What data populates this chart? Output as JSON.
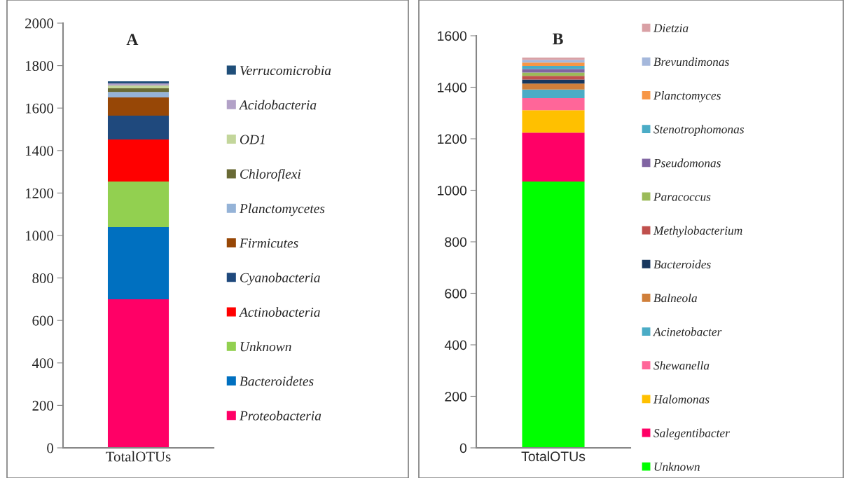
{
  "chart_data": [
    {
      "type": "bar",
      "title": "A",
      "stacked": true,
      "categories": [
        "TotalOTUs"
      ],
      "ylim": [
        0,
        2000
      ],
      "yticks": [
        0,
        200,
        400,
        600,
        800,
        1000,
        1200,
        1400,
        1600,
        1800,
        2000
      ],
      "grid": false,
      "legend": "right",
      "series": [
        {
          "name": "Proteobacteria",
          "color": "#ff0066",
          "values": [
            700
          ]
        },
        {
          "name": "Bacteroidetes",
          "color": "#0070c0",
          "values": [
            340
          ]
        },
        {
          "name": "Unknown",
          "color": "#92d050",
          "values": [
            214
          ]
        },
        {
          "name": "Actinobacteria",
          "color": "#ff0000",
          "values": [
            198
          ]
        },
        {
          "name": "Cyanobacteria",
          "color": "#1f497d",
          "values": [
            112
          ]
        },
        {
          "name": "Firmicutes",
          "color": "#974706",
          "values": [
            86
          ]
        },
        {
          "name": "Planctomycetes",
          "color": "#95b3d7",
          "values": [
            26
          ]
        },
        {
          "name": "Chloroflexi",
          "color": "#696a35",
          "values": [
            17
          ]
        },
        {
          "name": "OD1",
          "color": "#c3d69b",
          "values": [
            13
          ]
        },
        {
          "name": "Acidobacteria",
          "color": "#b2a1c7",
          "values": [
            10
          ]
        },
        {
          "name": "Verrucomicrobia",
          "color": "#1f4e79",
          "values": [
            10
          ]
        }
      ]
    },
    {
      "type": "bar",
      "title": "B",
      "stacked": true,
      "categories": [
        "TotalOTUs"
      ],
      "ylim": [
        0,
        1600
      ],
      "yticks": [
        0,
        200,
        400,
        600,
        800,
        1000,
        1200,
        1400,
        1600
      ],
      "grid": false,
      "legend": "right",
      "series": [
        {
          "name": "Unknown",
          "color": "#00ff00",
          "values": [
            1034
          ]
        },
        {
          "name": "Salegentibacter",
          "color": "#ff0066",
          "values": [
            190
          ]
        },
        {
          "name": "Halomonas",
          "color": "#ffc000",
          "values": [
            87
          ]
        },
        {
          "name": "Shewanella",
          "color": "#ff6699",
          "values": [
            47
          ]
        },
        {
          "name": "Acinetobacter",
          "color": "#4bacc6",
          "values": [
            33
          ]
        },
        {
          "name": "Balneola",
          "color": "#d07f3a",
          "values": [
            23
          ]
        },
        {
          "name": "Bacteroides",
          "color": "#17375e",
          "values": [
            16
          ]
        },
        {
          "name": "Methylobacterium",
          "color": "#c0504d",
          "values": [
            14
          ]
        },
        {
          "name": "Paracoccus",
          "color": "#9bbb59",
          "values": [
            13
          ]
        },
        {
          "name": "Pseudomonas",
          "color": "#8064a2",
          "values": [
            14
          ]
        },
        {
          "name": "Stenotrophomonas",
          "color": "#4bacc6",
          "values": [
            12
          ]
        },
        {
          "name": "Planctomyces",
          "color": "#f79646",
          "values": [
            13
          ]
        },
        {
          "name": "Brevundimonas",
          "color": "#a5b8dc",
          "values": [
            10
          ]
        },
        {
          "name": "Dietzia",
          "color": "#d9a0a5",
          "values": [
            9
          ]
        }
      ]
    }
  ]
}
